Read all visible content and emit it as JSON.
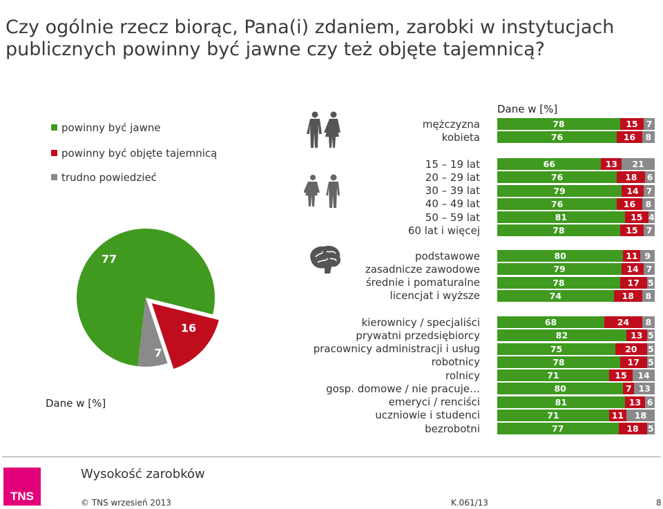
{
  "title": "Czy ogólnie rzecz biorąc, Pana(i) zdaniem, zarobki w instytucjach publicznych powinny być jawne czy też objęte tajemnicą?",
  "colors": {
    "jawne": "#3f9a1f",
    "tajemnica": "#c00d1e",
    "trudno": "#8a8a8a"
  },
  "legend": [
    {
      "label": "powinny być jawne",
      "color": "#3f9a1f"
    },
    {
      "label": "powinny być objęte tajemnicą",
      "color": "#c00d1e"
    },
    {
      "label": "trudno powiedzieć",
      "color": "#8a8a8a"
    }
  ],
  "pie": {
    "unit_label": "Dane w [%]"
  },
  "bars": {
    "unit_label": "Dane w [%]"
  },
  "icons": [
    "man-woman-icon",
    "age-group-icon",
    "brain-icon"
  ],
  "chart_data": [
    {
      "type": "pie",
      "categories": [
        "powinny być jawne",
        "powinny być objęte tajemnicą",
        "trudno powiedzieć"
      ],
      "values": [
        77,
        16,
        7
      ]
    },
    {
      "type": "bar",
      "stacked": true,
      "orientation": "horizontal",
      "series": [
        {
          "name": "powinny być jawne"
        },
        {
          "name": "powinny być objęte tajemnicą"
        },
        {
          "name": "trudno powiedzieć"
        }
      ],
      "groups": [
        {
          "icon": "man-woman-icon",
          "rows": [
            {
              "label": "mężczyzna",
              "values": [
                78,
                15,
                7
              ]
            },
            {
              "label": "kobieta",
              "values": [
                76,
                16,
                8
              ]
            }
          ]
        },
        {
          "icon": "age-group-icon",
          "rows": [
            {
              "label": "15 – 19 lat",
              "values": [
                66,
                13,
                21
              ]
            },
            {
              "label": "20 – 29 lat",
              "values": [
                76,
                18,
                6
              ]
            },
            {
              "label": "30 – 39 lat",
              "values": [
                79,
                14,
                7
              ]
            },
            {
              "label": "40 – 49 lat",
              "values": [
                76,
                16,
                8
              ]
            },
            {
              "label": "50 – 59 lat",
              "values": [
                81,
                15,
                4
              ]
            },
            {
              "label": "60 lat i więcej",
              "values": [
                78,
                15,
                7
              ]
            }
          ]
        },
        {
          "icon": "brain-icon",
          "rows": [
            {
              "label": "podstawowe",
              "values": [
                80,
                11,
                9
              ]
            },
            {
              "label": "zasadnicze zawodowe",
              "values": [
                79,
                14,
                7
              ]
            },
            {
              "label": "średnie i pomaturalne",
              "values": [
                78,
                17,
                5
              ]
            },
            {
              "label": "licencjat i wyższe",
              "values": [
                74,
                18,
                8
              ]
            }
          ]
        },
        {
          "icon": "",
          "rows": [
            {
              "label": "kierownicy / specjaliści",
              "values": [
                68,
                24,
                8
              ]
            },
            {
              "label": "prywatni przedsiębiorcy",
              "values": [
                82,
                13,
                5
              ]
            },
            {
              "label": "pracownicy administracji i usług",
              "values": [
                75,
                20,
                5
              ]
            },
            {
              "label": "robotnicy",
              "values": [
                78,
                17,
                5
              ]
            },
            {
              "label": "rolnicy",
              "values": [
                71,
                15,
                14
              ]
            },
            {
              "label": "gosp. domowe / nie pracuje…",
              "values": [
                80,
                7,
                13
              ]
            },
            {
              "label": "emeryci / renciści",
              "values": [
                81,
                13,
                6
              ]
            },
            {
              "label": "uczniowie i studenci",
              "values": [
                71,
                11,
                18
              ]
            },
            {
              "label": "bezrobotni",
              "values": [
                77,
                18,
                5
              ]
            }
          ]
        }
      ]
    }
  ],
  "footer": {
    "section": "Wysokość zarobków",
    "logo": "TNS",
    "copyright": "© TNS    wrzesień 2013",
    "code": "K.061/13",
    "page": "8"
  }
}
